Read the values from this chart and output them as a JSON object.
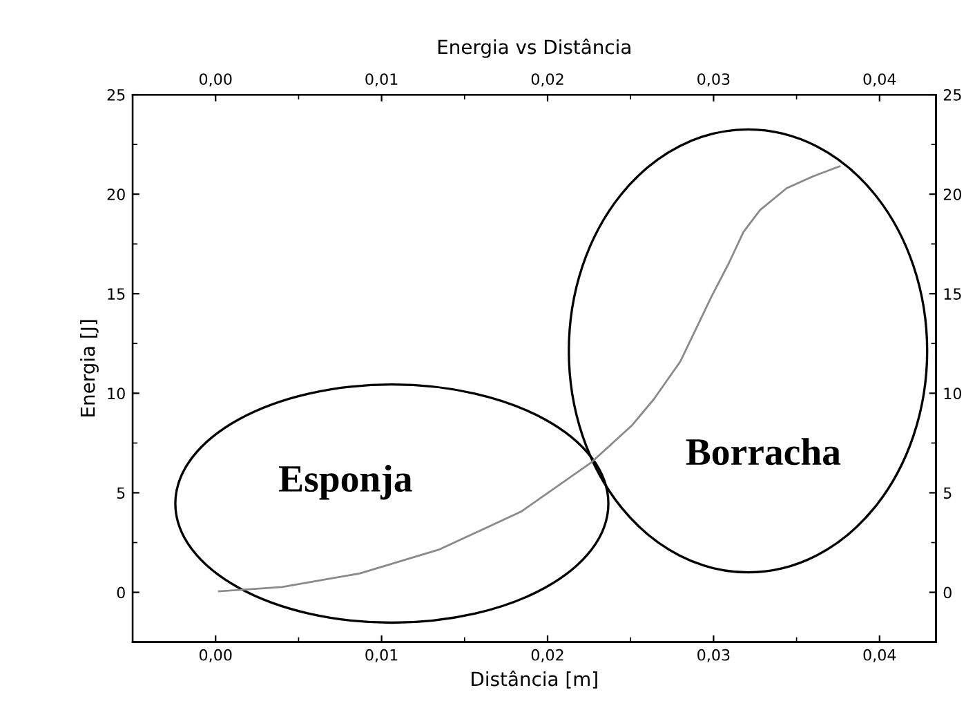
{
  "chart_data": {
    "type": "line",
    "title": "Energia vs Distância",
    "xlabel": "Distância [m]",
    "ylabel": "Energia [J]",
    "x": [
      0.0002,
      0.004,
      0.0087,
      0.0135,
      0.0184,
      0.0226,
      0.0251,
      0.0264,
      0.028,
      0.0299,
      0.0309,
      0.0318,
      0.0328,
      0.0344,
      0.036,
      0.0376
    ],
    "series": [
      {
        "color": "#8a8a8a",
        "values": [
          0.05,
          0.27,
          0.95,
          2.16,
          4.05,
          6.5,
          8.4,
          9.7,
          11.6,
          14.9,
          16.5,
          18.1,
          19.2,
          20.3,
          20.9,
          21.4
        ]
      }
    ],
    "xlim": [
      -0.005,
      0.0434
    ],
    "xticks": [
      {
        "value": 0,
        "label": "0,00"
      },
      {
        "value": 0.01,
        "label": "0,01"
      },
      {
        "value": 0.02,
        "label": "0,02"
      },
      {
        "value": 0.03,
        "label": "0,03"
      },
      {
        "value": 0.04,
        "label": "0,04"
      }
    ],
    "x2lim": [
      -0.005,
      0.0434
    ],
    "x2ticks": [
      {
        "value": 0,
        "label": "0,00"
      },
      {
        "value": 0.01,
        "label": "0,01"
      },
      {
        "value": 0.02,
        "label": "0,02"
      },
      {
        "value": 0.03,
        "label": "0,03"
      },
      {
        "value": 0.04,
        "label": "0,04"
      }
    ],
    "ylim": [
      -2.5,
      25
    ],
    "yticks": [
      0,
      5,
      10,
      15,
      20,
      25
    ],
    "y2lim": [
      -2.5,
      25
    ],
    "y2ticks": [
      0,
      5,
      10,
      15,
      20,
      25
    ],
    "annotations": [
      "Esponja",
      "Borracha"
    ],
    "grid": false,
    "legend": false,
    "marker": "none",
    "line_style": "solid"
  }
}
